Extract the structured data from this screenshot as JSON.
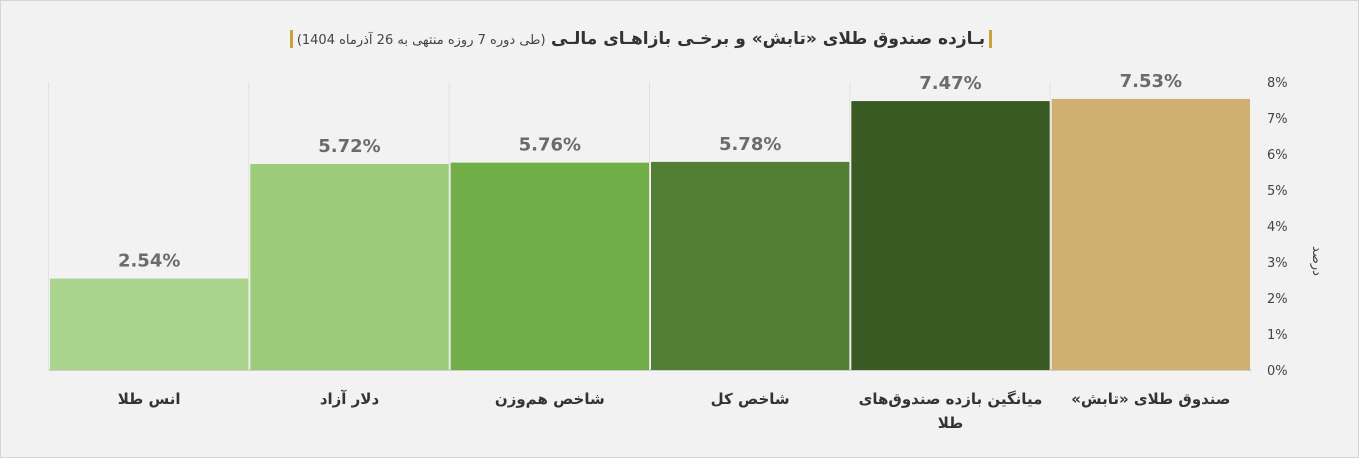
{
  "chart_data": {
    "type": "bar",
    "title": "بـازده صندوق طلای «تابش» و برخـی بازاهـای مالـی",
    "subtitle": "(طی دوره 7 روزه منتهی به 26 آذرماه 1404)",
    "y_label": "درصد",
    "categories": [
      "صندوق طلای «تابش»",
      "میانگین بازده صندوق‌های طلا",
      "شاخص کل",
      "شاخص هم‌وزن",
      "دلار آزاد",
      "انس طلا"
    ],
    "values": [
      7.53,
      7.47,
      5.78,
      5.76,
      5.72,
      2.54
    ],
    "value_labels": [
      "7.53%",
      "7.47%",
      "5.78%",
      "5.76%",
      "5.72%",
      "2.54%"
    ],
    "colors": [
      "#d0af72",
      "#3a5a24",
      "#527f35",
      "#72ae48",
      "#9ccb7a",
      "#abd48f"
    ],
    "ylim": [
      0,
      8
    ],
    "yticks": [
      {
        "value": 0,
        "label": "0%"
      },
      {
        "value": 1,
        "label": "1%"
      },
      {
        "value": 2,
        "label": "2%"
      },
      {
        "value": 3,
        "label": "3%"
      },
      {
        "value": 4,
        "label": "4%"
      },
      {
        "value": 5,
        "label": "5%"
      },
      {
        "value": 6,
        "label": "6%"
      },
      {
        "value": 7,
        "label": "7%"
      },
      {
        "value": 8,
        "label": "8%"
      }
    ]
  }
}
